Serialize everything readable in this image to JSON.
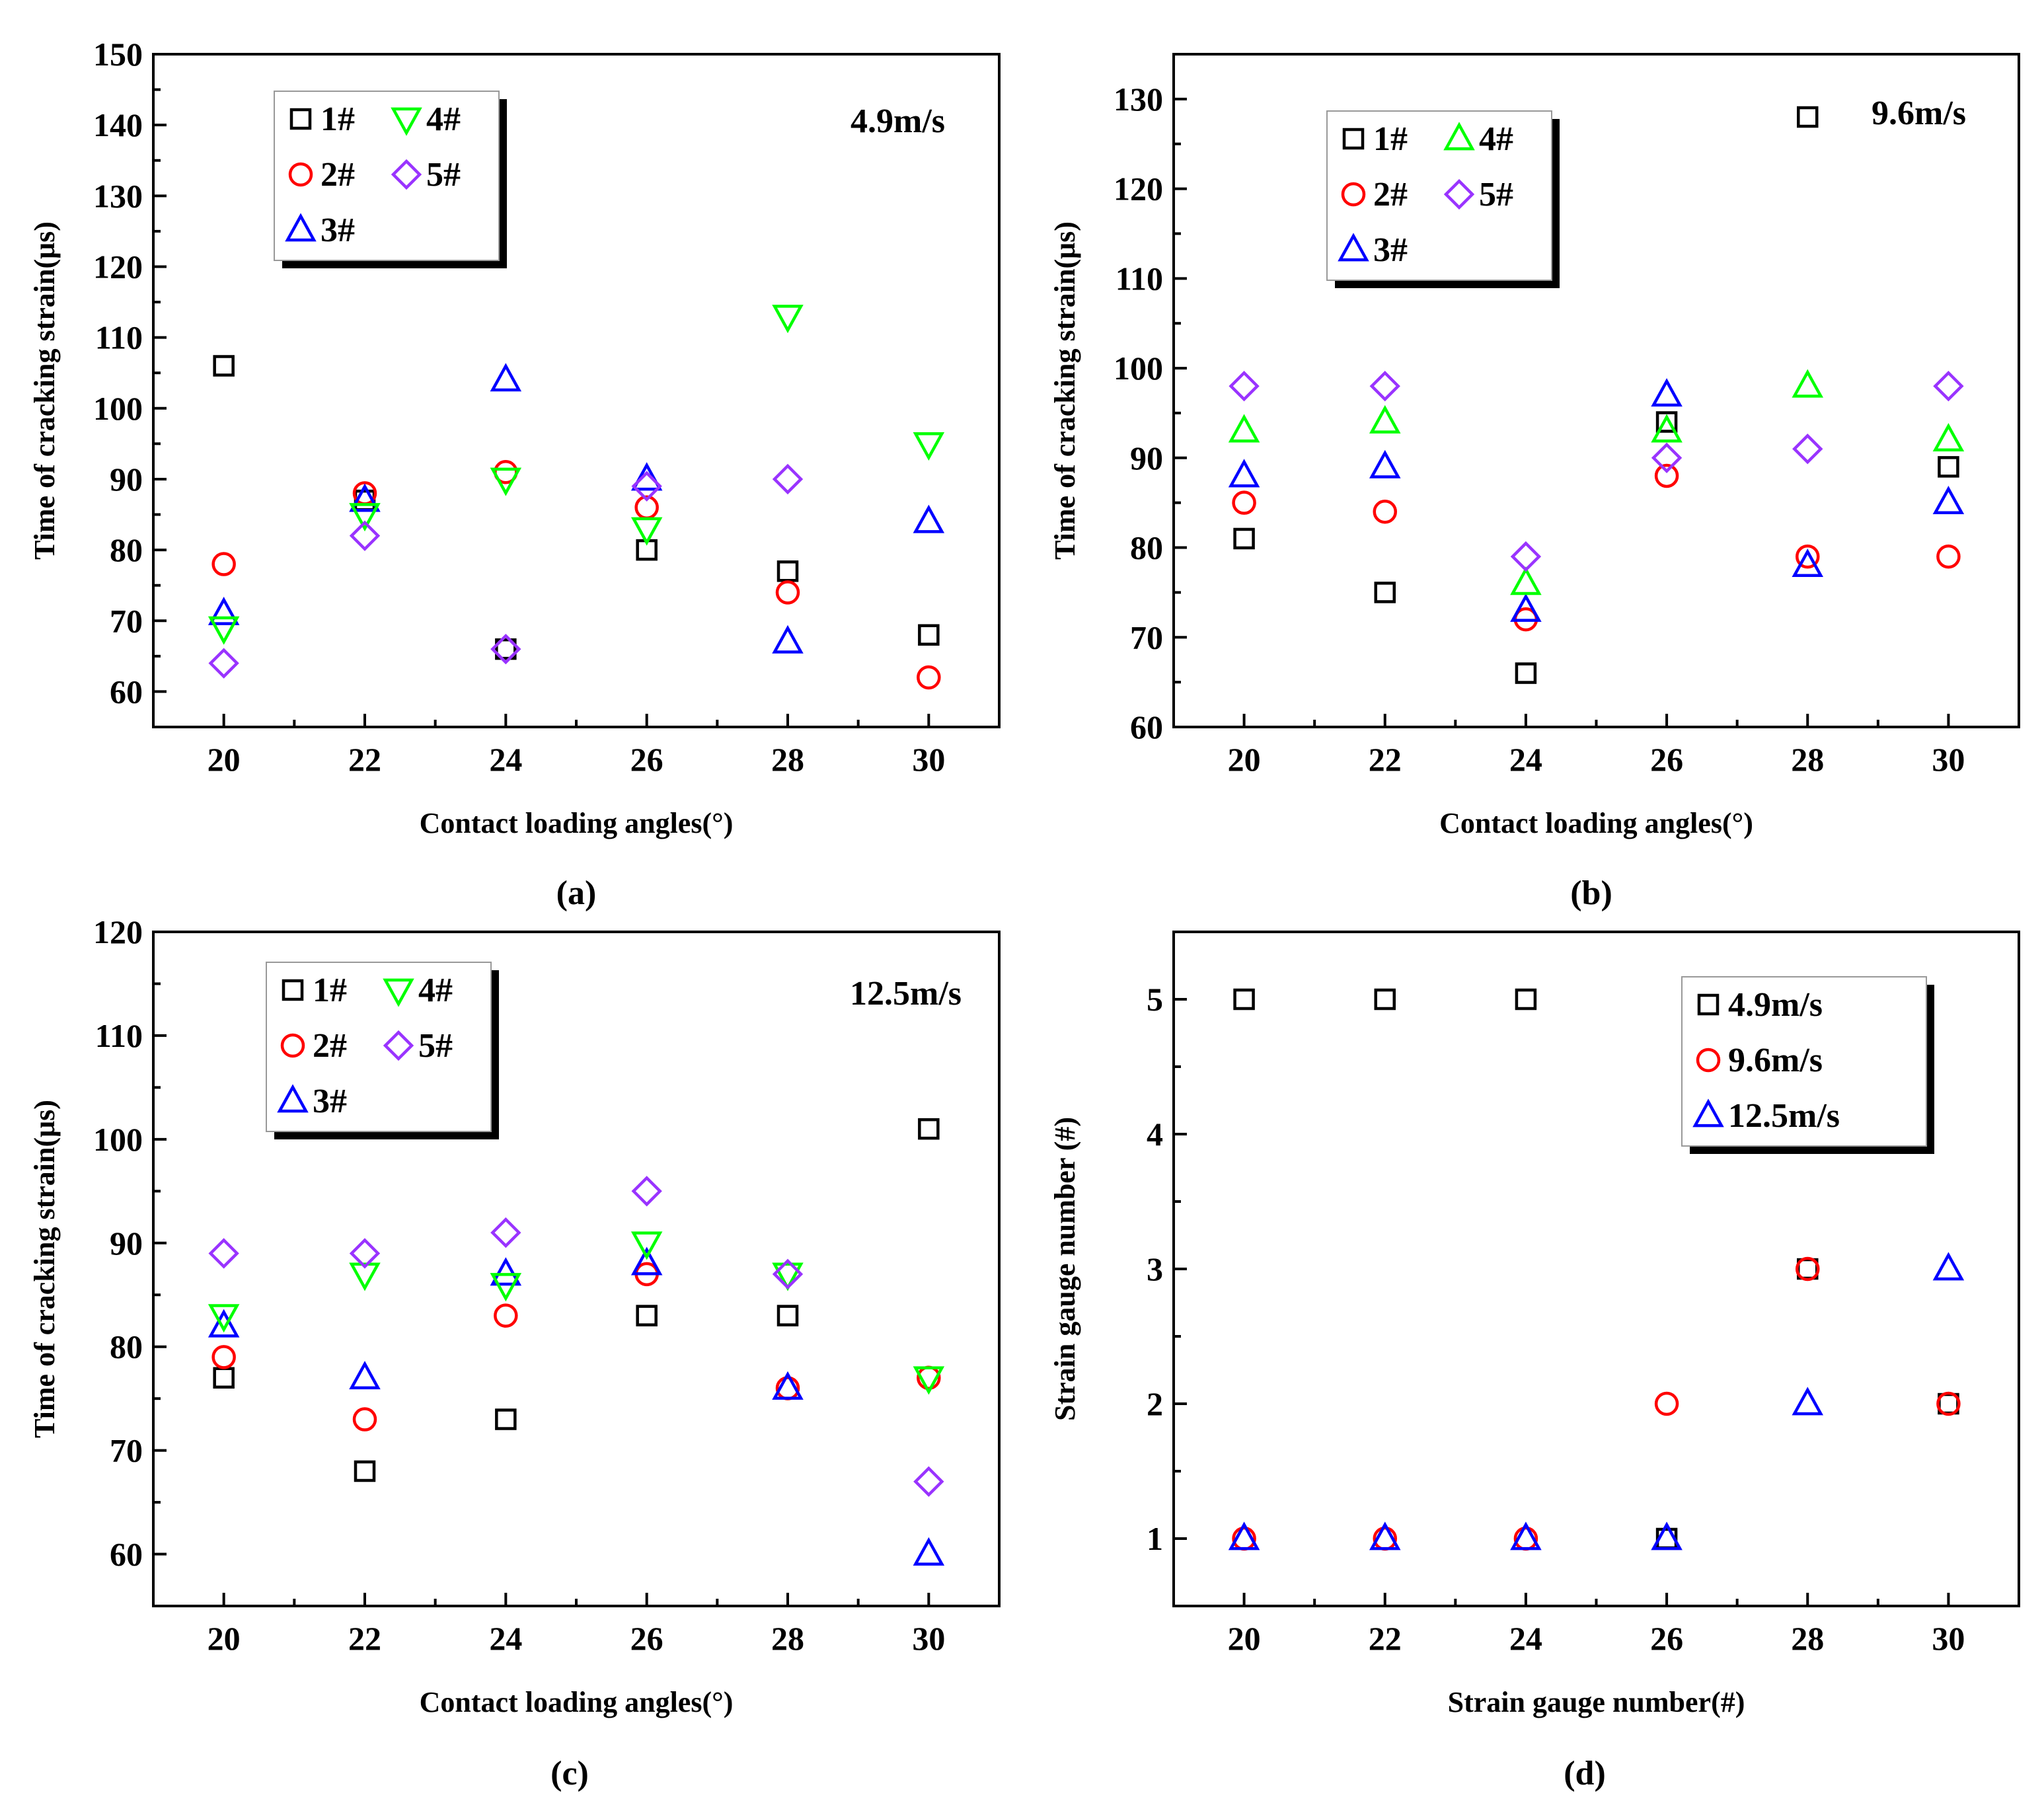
{
  "chart_data": [
    {
      "panel": "(a)",
      "type": "scatter",
      "annotation": "4.9m/s",
      "xlabel": "Contact loading angles(°)",
      "ylabel": "Time of cracking strain(μs)",
      "xlim": [
        19,
        31
      ],
      "ylim": [
        55,
        150
      ],
      "xticks": [
        20,
        22,
        24,
        26,
        28,
        30
      ],
      "yticks": [
        60,
        70,
        80,
        90,
        100,
        110,
        120,
        130,
        140,
        150
      ],
      "legend_placement": "top-left",
      "x": [
        20,
        22,
        24,
        26,
        28,
        30
      ],
      "series": [
        {
          "name": "1#",
          "marker": "square",
          "color": "#000000",
          "values": [
            106,
            87,
            66,
            80,
            77,
            68
          ]
        },
        {
          "name": "2#",
          "marker": "circle",
          "color": "#ff0000",
          "values": [
            78,
            88,
            91,
            86,
            74,
            62
          ]
        },
        {
          "name": "3#",
          "marker": "triangle-up",
          "color": "#0000ff",
          "values": [
            71,
            87,
            104,
            90,
            67,
            84
          ]
        },
        {
          "name": "4#",
          "marker": "triangle-down",
          "color": "#00ff00",
          "values": [
            69,
            85,
            90,
            83,
            113,
            95
          ]
        },
        {
          "name": "5#",
          "marker": "diamond",
          "color": "#9933ff",
          "values": [
            64,
            82,
            66,
            89,
            90,
            null
          ]
        }
      ]
    },
    {
      "panel": "(b)",
      "type": "scatter",
      "annotation": "9.6m/s",
      "xlabel": "Contact loading angles(°)",
      "ylabel": "Time of cracking strain(μs)",
      "xlim": [
        19,
        31
      ],
      "ylim": [
        60,
        135
      ],
      "xticks": [
        20,
        22,
        24,
        26,
        28,
        30
      ],
      "yticks": [
        60,
        70,
        80,
        90,
        100,
        110,
        120,
        130
      ],
      "legend_placement": "top-left",
      "x": [
        20,
        22,
        24,
        26,
        28,
        30
      ],
      "series": [
        {
          "name": "1#",
          "marker": "square",
          "color": "#000000",
          "values": [
            81,
            75,
            66,
            94,
            128,
            89
          ]
        },
        {
          "name": "2#",
          "marker": "circle",
          "color": "#ff0000",
          "values": [
            85,
            84,
            72,
            88,
            79,
            79
          ]
        },
        {
          "name": "3#",
          "marker": "triangle-up",
          "color": "#0000ff",
          "values": [
            88,
            89,
            73,
            97,
            78,
            85
          ]
        },
        {
          "name": "4#",
          "marker": "triangle-up",
          "color": "#00ff00",
          "values": [
            93,
            94,
            76,
            93,
            98,
            92
          ]
        },
        {
          "name": "5#",
          "marker": "diamond",
          "color": "#9933ff",
          "values": [
            98,
            98,
            79,
            90,
            91,
            98
          ]
        }
      ]
    },
    {
      "panel": "(c)",
      "type": "scatter",
      "annotation": "12.5m/s",
      "xlabel": "Contact loading angles(°)",
      "ylabel": "Time of cracking strain(μs)",
      "xlim": [
        19,
        31
      ],
      "ylim": [
        55,
        120
      ],
      "xticks": [
        20,
        22,
        24,
        26,
        28,
        30
      ],
      "yticks": [
        60,
        70,
        80,
        90,
        100,
        110,
        120
      ],
      "legend_placement": "top-left",
      "x": [
        20,
        22,
        24,
        26,
        28,
        30
      ],
      "series": [
        {
          "name": "1#",
          "marker": "square",
          "color": "#000000",
          "values": [
            77,
            68,
            73,
            83,
            83,
            101
          ]
        },
        {
          "name": "2#",
          "marker": "circle",
          "color": "#ff0000",
          "values": [
            79,
            73,
            83,
            87,
            76,
            77
          ]
        },
        {
          "name": "3#",
          "marker": "triangle-up",
          "color": "#0000ff",
          "values": [
            82,
            77,
            87,
            88,
            76,
            60
          ]
        },
        {
          "name": "4#",
          "marker": "triangle-down",
          "color": "#00ff00",
          "values": [
            83,
            87,
            86,
            90,
            87,
            77
          ]
        },
        {
          "name": "5#",
          "marker": "diamond",
          "color": "#9933ff",
          "values": [
            89,
            89,
            91,
            95,
            87,
            67
          ]
        }
      ]
    },
    {
      "panel": "(d)",
      "type": "scatter",
      "annotation": "",
      "xlabel": "Strain gauge number(#)",
      "ylabel": "Strain gauge number (#)",
      "xlim": [
        19,
        31
      ],
      "ylim": [
        0.5,
        5.5
      ],
      "xticks": [
        20,
        22,
        24,
        26,
        28,
        30
      ],
      "yticks": [
        1,
        2,
        3,
        4,
        5
      ],
      "legend_placement": "top-right",
      "x": [
        20,
        22,
        24,
        26,
        28,
        30
      ],
      "series": [
        {
          "name": "4.9m/s",
          "marker": "square",
          "color": "#000000",
          "values": [
            5,
            5,
            5,
            1,
            3,
            2
          ]
        },
        {
          "name": "9.6m/s",
          "marker": "circle",
          "color": "#ff0000",
          "values": [
            1,
            1,
            1,
            2,
            3,
            2
          ]
        },
        {
          "name": "12.5m/s",
          "marker": "triangle-up",
          "color": "#0000ff",
          "values": [
            1,
            1,
            1,
            1,
            2,
            3
          ]
        }
      ]
    }
  ]
}
